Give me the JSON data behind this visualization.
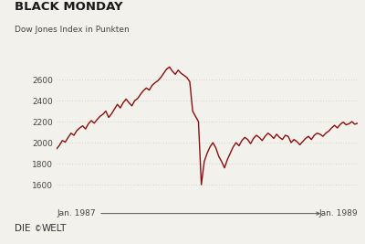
{
  "title": "BLACK MONDAY",
  "subtitle": "Dow Jones Index in Punkten",
  "line_color": "#8B0F0F",
  "background_color": "#F2F1EC",
  "grid_color": "#BBBBBB",
  "xlabel_left": "Jan. 1987",
  "xlabel_right": "Jan. 1989",
  "ylabel_ticks": [
    1600,
    1800,
    2000,
    2200,
    2400,
    2600
  ],
  "ylim": [
    1500,
    2800
  ],
  "line_width": 1.0,
  "dj_data": [
    1940,
    1975,
    2020,
    2005,
    2050,
    2090,
    2070,
    2115,
    2140,
    2160,
    2130,
    2180,
    2210,
    2185,
    2220,
    2250,
    2270,
    2300,
    2240,
    2275,
    2320,
    2365,
    2330,
    2380,
    2415,
    2445,
    2420,
    2460,
    2495,
    2520,
    2500,
    2545,
    2570,
    2590,
    2620,
    2650,
    2670,
    2700,
    2720,
    2730,
    2690,
    2650,
    2620,
    2580,
    2540,
    2490,
    2640,
    2300,
    2150,
    2050,
    2100,
    2200,
    1900,
    2050,
    2100,
    1960,
    2010,
    2070,
    2020,
    1970,
    2030,
    2010,
    1860,
    1820,
    1760,
    1840,
    1900,
    1980,
    2010,
    1970,
    2020,
    2050,
    2030,
    1990,
    2040,
    2070,
    2050,
    2020,
    2060,
    2080,
    2060,
    2030,
    2070,
    2050,
    2090,
    2040,
    2000,
    2030,
    2010,
    1970,
    2000,
    2030,
    2050,
    2020,
    2060,
    2090,
    2080,
    2060,
    2090,
    2110,
    2130,
    2160,
    2140,
    2170,
    2185,
    2155,
    2175,
    2195,
    2175
  ],
  "crash_insert_idx": 46,
  "crash_values": [
    2640,
    2450,
    2280,
    2100,
    1900,
    1600,
    1750,
    1820,
    1880,
    1950,
    2000,
    1940,
    1870,
    1820,
    1760
  ]
}
